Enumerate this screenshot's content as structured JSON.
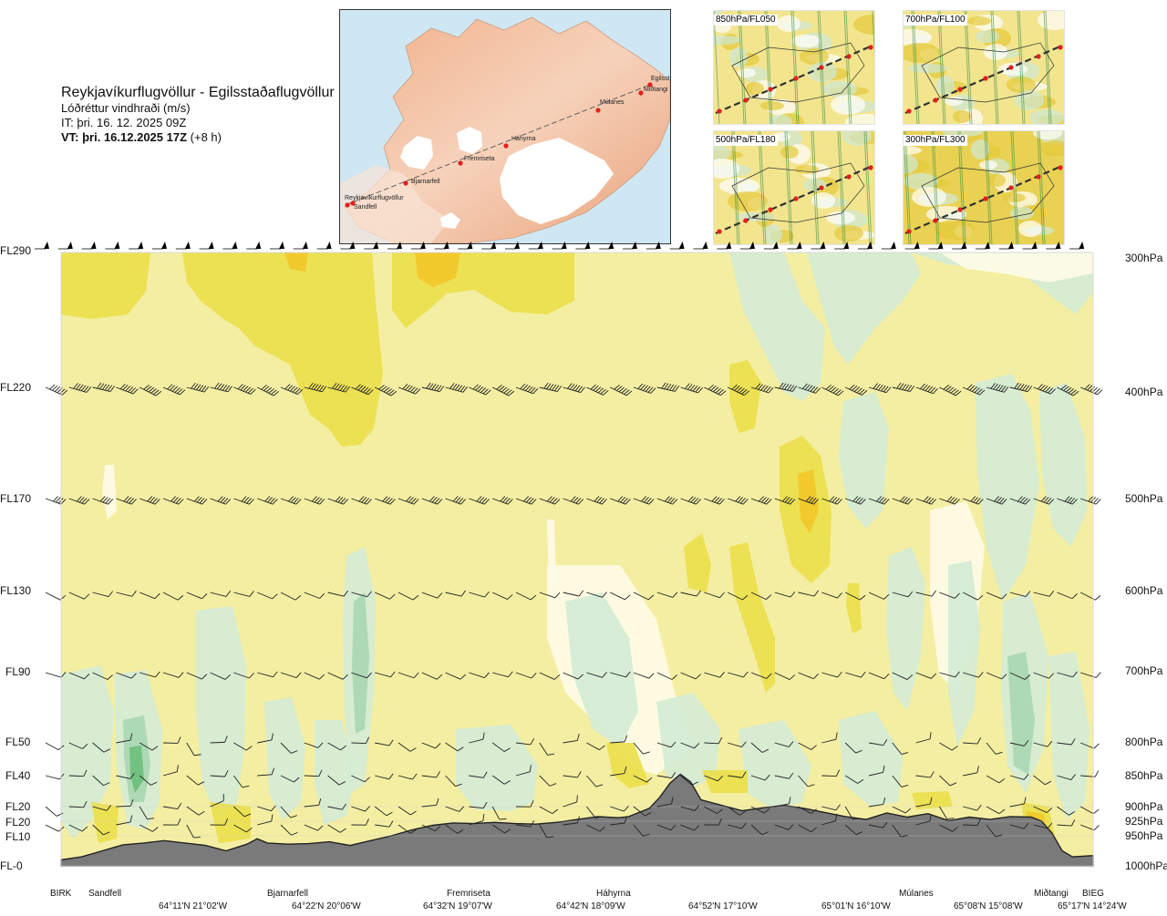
{
  "header": {
    "route_title": "Reykjavíkurflugvöllur - Egilsstaðaflugvöllur",
    "variable": "Lóðréttur vindhraði (m/s)",
    "issue_time": "IT: þri. 16. 12. 2025 09Z",
    "valid_prefix": "VT: þri. 16.12.2025 17Z",
    "valid_suffix": "(+8 h)"
  },
  "route_map": {
    "waypoints": [
      "Reykjavíkurflugvöllur",
      "Sandfell",
      "Bjarnarfell",
      "Fremriseta",
      "Háhyrna",
      "Múlanes",
      "Miðtangi",
      "Egilsst"
    ],
    "colors": {
      "sea": "#cfe6f3",
      "land_low": "#f7e2d2",
      "land_high": "#e8a77f",
      "ice": "#ffffff",
      "route": "#555555",
      "point": "#e0201c"
    }
  },
  "level_maps": [
    {
      "label": "850hPa/FL050"
    },
    {
      "label": "700hPa/FL100"
    },
    {
      "label": "500hPa/FL180"
    },
    {
      "label": "300hPa/FL300"
    }
  ],
  "chart_data": {
    "type": "heatmap",
    "title": "Reykjavíkurflugvöllur - Egilsstaðaflugvöllur",
    "variable": "Lóðréttur vindhraði (m/s)",
    "left_axis_labels": [
      "FL290",
      "FL220",
      "FL170",
      "FL130",
      "FL90",
      "FL50",
      "FL40",
      "FL20",
      "FL20",
      "FL10",
      "FL-0"
    ],
    "right_axis_labels": [
      "300hPa",
      "400hPa",
      "500hPa",
      "600hPa",
      "700hPa",
      "800hPa",
      "850hPa",
      "900hPa",
      "925hPa",
      "950hPa",
      "1000hPa"
    ],
    "pressure_levels_hpa": [
      300,
      400,
      500,
      600,
      700,
      800,
      850,
      900,
      925,
      950,
      1000
    ],
    "waypoints": [
      "BIRK",
      "Sandfell",
      "Bjarnarfell",
      "Fremriseta",
      "Háhyrna",
      "Múlanes",
      "Miðtangi",
      "BIEG"
    ],
    "waypoint_fraction": [
      0.0,
      0.045,
      0.25,
      0.42,
      0.56,
      0.83,
      0.965,
      1.0
    ],
    "coordinates": [
      "64°11'N 21°02'W",
      "64°22'N 20°06'W",
      "64°32'N 19°07'W",
      "64°42'N 18°09'W",
      "64°52'N 17°10'W",
      "65°01'N 16°10'W",
      "65°08'N 15°08'W",
      "65°17'N 14°24'W"
    ],
    "coordinate_fraction": [
      0.1,
      0.235,
      0.405,
      0.54,
      0.67,
      0.8,
      0.908,
      0.993
    ],
    "terrain_pressure_hpa": [
      [
        0.0,
        990
      ],
      [
        0.02,
        985
      ],
      [
        0.04,
        975
      ],
      [
        0.06,
        965
      ],
      [
        0.08,
        962
      ],
      [
        0.1,
        958
      ],
      [
        0.12,
        962
      ],
      [
        0.14,
        966
      ],
      [
        0.16,
        975
      ],
      [
        0.18,
        964
      ],
      [
        0.19,
        955
      ],
      [
        0.2,
        962
      ],
      [
        0.22,
        964
      ],
      [
        0.24,
        963
      ],
      [
        0.26,
        960
      ],
      [
        0.28,
        966
      ],
      [
        0.3,
        958
      ],
      [
        0.32,
        950
      ],
      [
        0.34,
        940
      ],
      [
        0.36,
        932
      ],
      [
        0.38,
        928
      ],
      [
        0.4,
        929
      ],
      [
        0.42,
        927
      ],
      [
        0.44,
        929
      ],
      [
        0.46,
        930
      ],
      [
        0.48,
        927
      ],
      [
        0.5,
        922
      ],
      [
        0.52,
        917
      ],
      [
        0.54,
        919
      ],
      [
        0.55,
        917
      ],
      [
        0.57,
        903
      ],
      [
        0.58,
        885
      ],
      [
        0.59,
        862
      ],
      [
        0.6,
        848
      ],
      [
        0.61,
        860
      ],
      [
        0.62,
        889
      ],
      [
        0.64,
        898
      ],
      [
        0.66,
        907
      ],
      [
        0.68,
        902
      ],
      [
        0.7,
        898
      ],
      [
        0.72,
        903
      ],
      [
        0.74,
        910
      ],
      [
        0.76,
        917
      ],
      [
        0.78,
        922
      ],
      [
        0.8,
        911
      ],
      [
        0.82,
        918
      ],
      [
        0.84,
        912
      ],
      [
        0.86,
        924
      ],
      [
        0.88,
        918
      ],
      [
        0.9,
        922
      ],
      [
        0.92,
        917
      ],
      [
        0.94,
        918
      ],
      [
        0.95,
        925
      ],
      [
        0.96,
        945
      ],
      [
        0.97,
        975
      ],
      [
        0.98,
        985
      ],
      [
        1.0,
        983
      ]
    ],
    "color_scale": [
      "#f4eea2",
      "#eae04c",
      "#f2c82a",
      "#fdfbe6",
      "#d4ecd5",
      "#a9d7b1",
      "#6cbf7c"
    ],
    "legend": "none",
    "grid": false
  }
}
